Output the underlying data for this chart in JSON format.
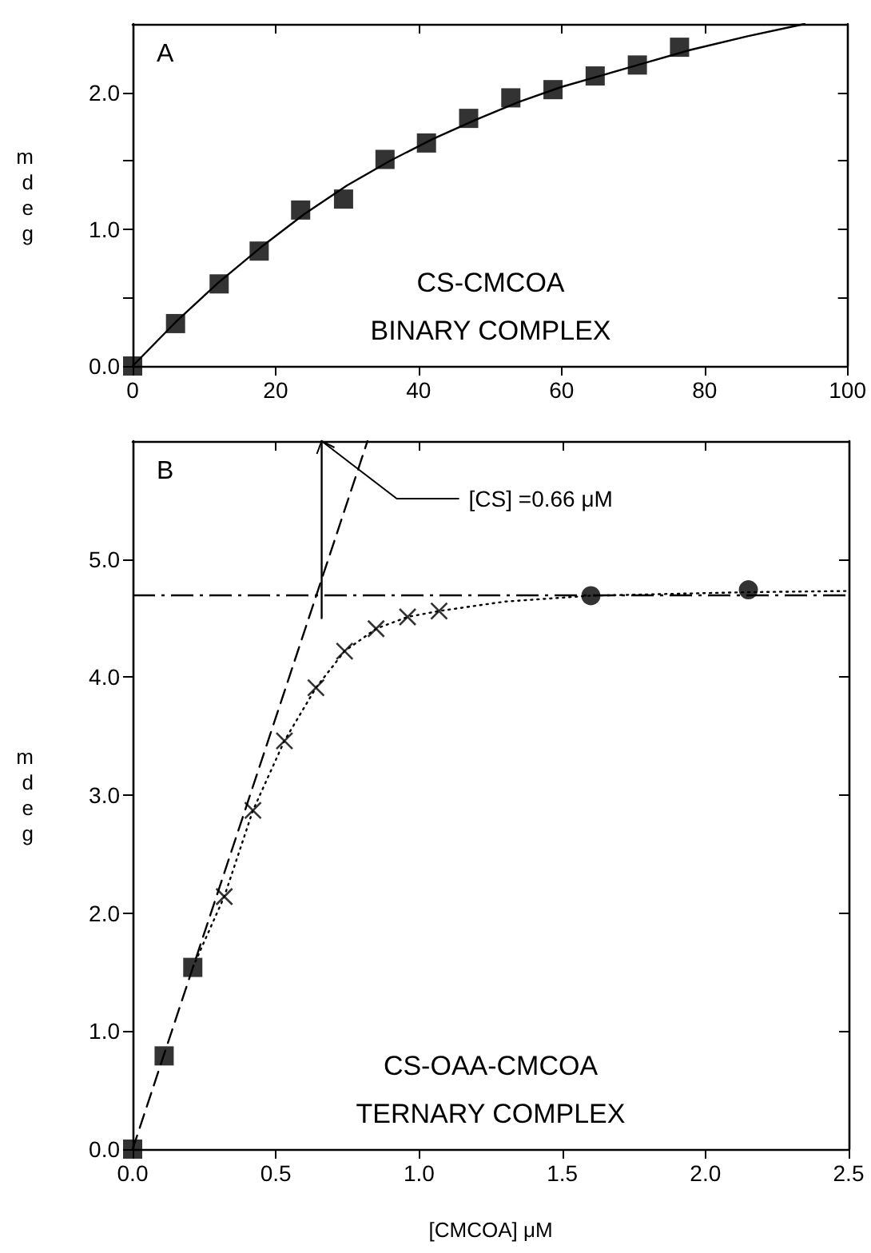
{
  "chart_data": [
    {
      "type": "scatter",
      "title": "A",
      "ylabel": "mdeg",
      "xlim": [
        0,
        100
      ],
      "xticks": [
        0,
        20,
        40,
        60,
        80,
        100
      ],
      "ylim": [
        0,
        2.5
      ],
      "yticks": [
        {
          "value": 0,
          "label": "0.0"
        },
        {
          "value": 0.5,
          "label": null
        },
        {
          "value": 1,
          "label": "1.0"
        },
        {
          "value": 1.5,
          "label": null
        },
        {
          "value": 2,
          "label": "2.0"
        }
      ],
      "annotations": [
        "CS-CMCOA",
        "BINARY COMPLEX"
      ],
      "series": [
        {
          "color": "#000000",
          "marker": "square",
          "x": [
            0,
            6.0,
            12.1,
            17.7,
            23.5,
            29.5,
            35.3,
            41.1,
            47.0,
            52.9,
            58.8,
            64.7,
            70.6,
            76.5
          ],
          "values": [
            0,
            0.31,
            0.6,
            0.84,
            1.14,
            1.22,
            1.51,
            1.63,
            1.81,
            1.96,
            2.02,
            2.12,
            2.2,
            2.33
          ]
        },
        {
          "type": "line",
          "color": "#000000",
          "marker": "none",
          "line_style": "solid",
          "x": [
            0,
            6,
            12,
            18,
            24,
            30,
            36,
            42,
            48,
            54,
            60,
            66,
            72,
            78,
            86,
            94
          ],
          "values": [
            0,
            0.32,
            0.61,
            0.87,
            1.11,
            1.32,
            1.5,
            1.66,
            1.8,
            1.93,
            2.04,
            2.13,
            2.22,
            2.31,
            2.41,
            2.5
          ]
        }
      ]
    },
    {
      "type": "scatter",
      "title": "B",
      "xlabel": "[CMCOA] μM",
      "ylabel": "mdeg",
      "xlim": [
        0,
        2.5
      ],
      "xticks": [
        {
          "value": 0,
          "label": "0.0"
        },
        {
          "value": 0.5,
          "label": "0.5"
        },
        {
          "value": 1,
          "label": "1.0"
        },
        {
          "value": 1.5,
          "label": "1.5"
        },
        {
          "value": 2,
          "label": "2.0"
        },
        {
          "value": 2.5,
          "label": "2.5"
        }
      ],
      "ylim": [
        0,
        6
      ],
      "yticks": [
        {
          "value": 0,
          "label": "0.0"
        },
        {
          "value": 1,
          "label": "1.0"
        },
        {
          "value": 2,
          "label": "2.0"
        },
        {
          "value": 3,
          "label": "3.0"
        },
        {
          "value": 4,
          "label": "4.0"
        },
        {
          "value": 5,
          "label": "5.0"
        }
      ],
      "annotations": [
        "CS-OAA-CMCOA",
        "TERNARY COMPLEX",
        {
          "text": "[CS] =0.66 μM",
          "x": 0.66,
          "y": 6
        }
      ],
      "ref_lines": [
        {
          "axis": "y",
          "value": 4.7,
          "line_style": "dashed"
        }
      ],
      "series": [
        {
          "type": "line",
          "color": "#000000",
          "marker": "none",
          "line_style": "dashed",
          "x": [
            0,
            0.82
          ],
          "values": [
            0,
            6
          ]
        },
        {
          "type": "line",
          "color": "#000000",
          "marker": "none",
          "line_style": "solid",
          "x": [
            0.66,
            0.66
          ],
          "values": [
            4.5,
            6
          ]
        },
        {
          "type": "line",
          "color": "#000000",
          "marker": "none",
          "line_style": "dotted",
          "x": [
            0.21,
            0.32,
            0.42,
            0.53,
            0.64,
            0.74,
            0.85,
            0.96,
            1.07,
            1.3,
            1.6,
            2.15,
            2.5
          ],
          "values": [
            1.54,
            2.14,
            2.87,
            3.46,
            3.91,
            4.22,
            4.41,
            4.51,
            4.56,
            4.64,
            4.69,
            4.72,
            4.73
          ]
        },
        {
          "color": "#000000",
          "marker": "square",
          "x": [
            0,
            0.11,
            0.21
          ],
          "values": [
            0,
            0.79,
            1.54
          ]
        },
        {
          "color": "#000000",
          "marker": "cross",
          "x": [
            0.32,
            0.42,
            0.53,
            0.64,
            0.74,
            0.85,
            0.96,
            1.07
          ],
          "values": [
            2.14,
            2.87,
            3.46,
            3.91,
            4.22,
            4.41,
            4.51,
            4.56
          ]
        },
        {
          "color": "#000000",
          "marker": "circle",
          "x": [
            1.6,
            2.15
          ],
          "values": [
            4.69,
            4.74
          ]
        }
      ]
    }
  ]
}
